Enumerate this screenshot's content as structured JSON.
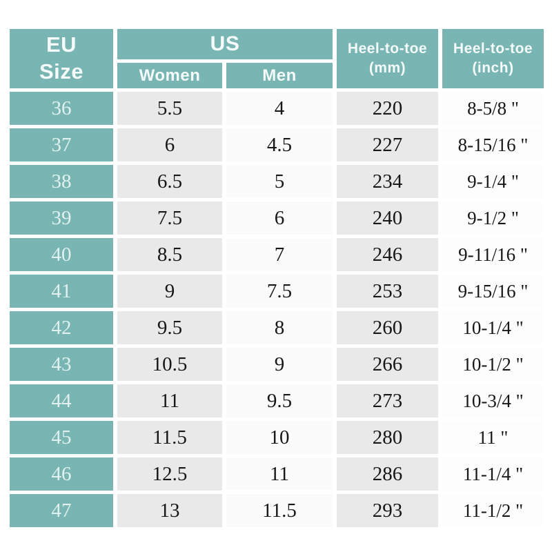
{
  "table": {
    "header": {
      "eu_size": "EU\nSize",
      "us": "US",
      "women": "Women",
      "men": "Men",
      "heel_mm": "Heel-to-toe\n(mm)",
      "heel_inch": "Heel-to-toe\n(inch)"
    },
    "rows": [
      {
        "eu": "36",
        "women": "5.5",
        "men": "4",
        "mm": "220",
        "inch": "8-5/8 \""
      },
      {
        "eu": "37",
        "women": "6",
        "men": "4.5",
        "mm": "227",
        "inch": "8-15/16 \""
      },
      {
        "eu": "38",
        "women": "6.5",
        "men": "5",
        "mm": "234",
        "inch": "9-1/4 \""
      },
      {
        "eu": "39",
        "women": "7.5",
        "men": "6",
        "mm": "240",
        "inch": "9-1/2 \""
      },
      {
        "eu": "40",
        "women": "8.5",
        "men": "7",
        "mm": "246",
        "inch": "9-11/16 \""
      },
      {
        "eu": "41",
        "women": "9",
        "men": "7.5",
        "mm": "253",
        "inch": "9-15/16 \""
      },
      {
        "eu": "42",
        "women": "9.5",
        "men": "8",
        "mm": "260",
        "inch": "10-1/4 \""
      },
      {
        "eu": "43",
        "women": "10.5",
        "men": "9",
        "mm": "266",
        "inch": "10-1/2 \""
      },
      {
        "eu": "44",
        "women": "11",
        "men": "9.5",
        "mm": "273",
        "inch": "10-3/4 \""
      },
      {
        "eu": "45",
        "women": "11.5",
        "men": "10",
        "mm": "280",
        "inch": "11 \""
      },
      {
        "eu": "46",
        "women": "12.5",
        "men": "11",
        "mm": "286",
        "inch": "11-1/4 \""
      },
      {
        "eu": "47",
        "women": "13",
        "men": "11.5",
        "mm": "293",
        "inch": "11-1/2 \""
      }
    ],
    "colors": {
      "teal": "#79b5b2",
      "cell_gray": "#e9e9e9",
      "cell_white": "#fbfbfb",
      "header_text": "#f4fbfa",
      "data_text": "#171717",
      "background": "#ffffff"
    }
  },
  "chart_data": {
    "type": "table",
    "title": "EU to US shoe size conversion with heel-to-toe length",
    "columns": [
      "EU Size",
      "US Women",
      "US Men",
      "Heel-to-toe (mm)",
      "Heel-to-toe (inch)"
    ],
    "rows": [
      [
        36,
        5.5,
        4,
        220,
        "8-5/8"
      ],
      [
        37,
        6,
        4.5,
        227,
        "8-15/16"
      ],
      [
        38,
        6.5,
        5,
        234,
        "9-1/4"
      ],
      [
        39,
        7.5,
        6,
        240,
        "9-1/2"
      ],
      [
        40,
        8.5,
        7,
        246,
        "9-11/16"
      ],
      [
        41,
        9,
        7.5,
        253,
        "9-15/16"
      ],
      [
        42,
        9.5,
        8,
        260,
        "10-1/4"
      ],
      [
        43,
        10.5,
        9,
        266,
        "10-1/2"
      ],
      [
        44,
        11,
        9.5,
        273,
        "10-3/4"
      ],
      [
        45,
        11.5,
        10,
        280,
        "11"
      ],
      [
        46,
        12.5,
        11,
        286,
        "11-1/4"
      ],
      [
        47,
        13,
        11.5,
        293,
        "11-1/2"
      ]
    ]
  }
}
